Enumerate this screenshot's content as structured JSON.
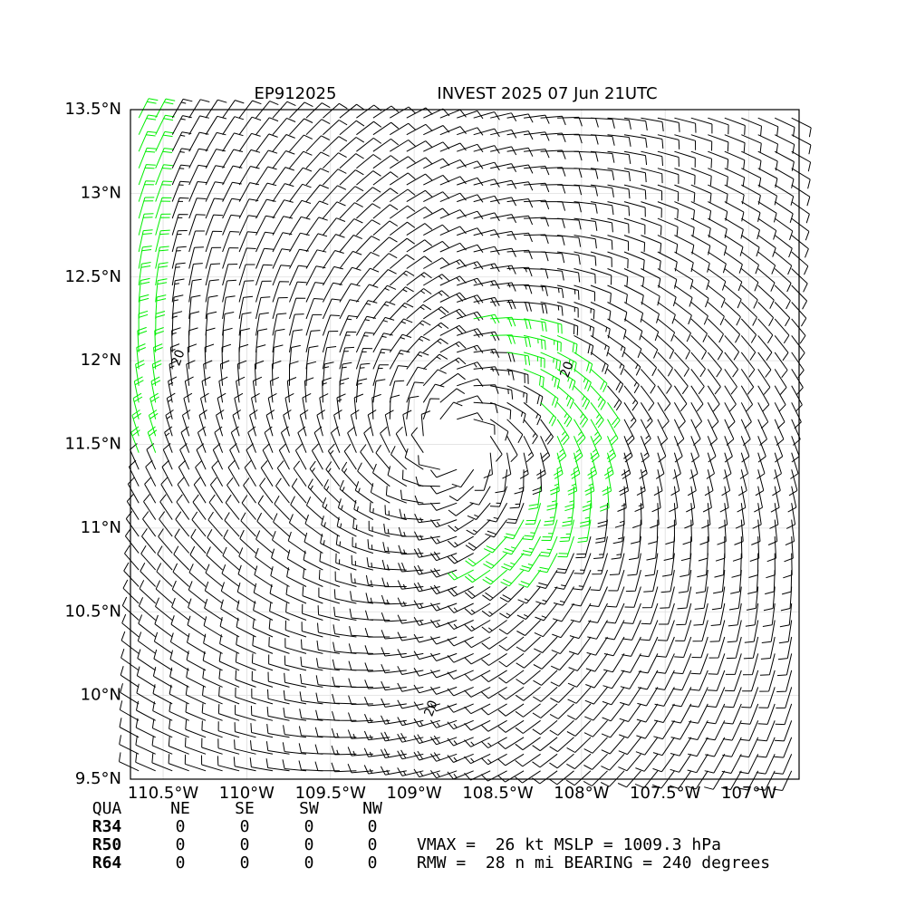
{
  "map": {
    "title_left": "EP912025",
    "title_right": "INVEST 2025 07 Jun 21UTC",
    "xlim": [
      -110.695,
      -106.7
    ],
    "ylim": [
      9.5,
      13.5
    ],
    "xticks": [
      {
        "value": -110.5,
        "label": "110.5°W"
      },
      {
        "value": -110,
        "label": "110°W"
      },
      {
        "value": -109.5,
        "label": "109.5°W"
      },
      {
        "value": -109,
        "label": "109°W"
      },
      {
        "value": -108.5,
        "label": "108.5°W"
      },
      {
        "value": -108,
        "label": "108°W"
      },
      {
        "value": -107.5,
        "label": "107.5°W"
      },
      {
        "value": -107,
        "label": "107°W"
      }
    ],
    "yticks": [
      {
        "value": 13.5,
        "label": "13.5°N"
      },
      {
        "value": 13,
        "label": "13°N"
      },
      {
        "value": 12.5,
        "label": "12.5°N"
      },
      {
        "value": 12,
        "label": "12°N"
      },
      {
        "value": 11.5,
        "label": "11.5°N"
      },
      {
        "value": 11,
        "label": "11°N"
      },
      {
        "value": 10.5,
        "label": "10.5°N"
      },
      {
        "value": 10,
        "label": "10°N"
      },
      {
        "value": 9.5,
        "label": "9.5°N"
      }
    ],
    "contour_labels": [
      "20",
      "20",
      "20"
    ],
    "table": {
      "header": [
        "QUA",
        "NE",
        "SE",
        "SW",
        "NW"
      ],
      "rows": [
        [
          "R34",
          0,
          0,
          0,
          0
        ],
        [
          "R50",
          0,
          0,
          0,
          0
        ],
        [
          "R64",
          0,
          0,
          0,
          0
        ]
      ]
    },
    "info": [
      "VMAX =  26 kt MSLP = 1009.3 hPa",
      "RMW =  28 n mi BEARING = 240 degrees"
    ]
  }
}
